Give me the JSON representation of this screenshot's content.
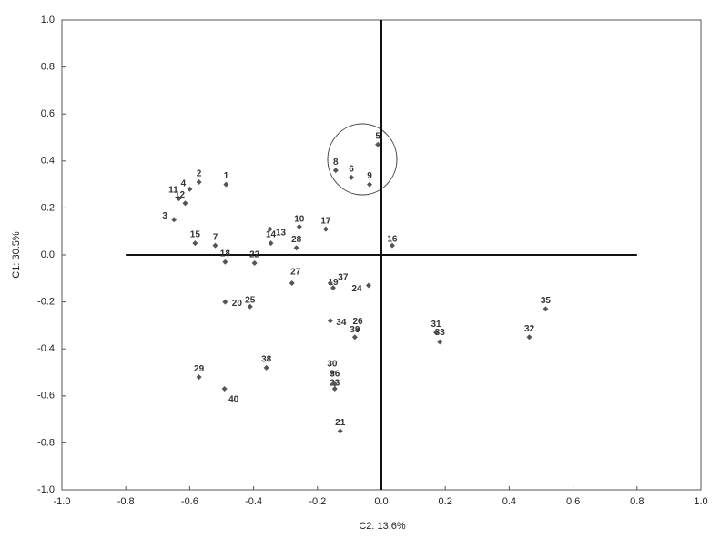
{
  "chart_data": {
    "type": "scatter",
    "xlabel": "C2: 13.6%",
    "ylabel": "C1: 30.5%",
    "labels": [
      "1",
      "2",
      "3",
      "4",
      "5",
      "6",
      "7",
      "8",
      "9",
      "10",
      "11",
      "12",
      "13",
      "14",
      "15",
      "16",
      "17",
      "18",
      "19",
      "20",
      "21",
      "22",
      "23",
      "24",
      "25",
      "26",
      "27",
      "28",
      "29",
      "30",
      "31",
      "32",
      "33",
      "34",
      "35",
      "36",
      "37",
      "38",
      "39",
      "40"
    ],
    "x": [
      -0.486,
      -0.571,
      -0.649,
      -0.6,
      -0.011,
      -0.094,
      -0.52,
      -0.143,
      -0.037,
      -0.257,
      -0.634,
      -0.614,
      -0.349,
      -0.346,
      -0.583,
      0.034,
      -0.174,
      -0.489,
      -0.151,
      -0.489,
      -0.129,
      -0.397,
      -0.146,
      -0.04,
      -0.411,
      -0.074,
      -0.28,
      -0.266,
      -0.571,
      -0.154,
      0.171,
      0.463,
      0.183,
      -0.16,
      0.514,
      -0.146,
      -0.16,
      -0.36,
      -0.083,
      -0.491
    ],
    "y": [
      0.3,
      0.31,
      0.15,
      0.28,
      0.47,
      0.33,
      0.04,
      0.36,
      0.3,
      0.12,
      0.24,
      0.22,
      0.11,
      0.05,
      0.05,
      0.04,
      0.11,
      -0.03,
      -0.14,
      -0.2,
      -0.75,
      -0.035,
      -0.57,
      -0.13,
      -0.22,
      -0.32,
      -0.12,
      0.03,
      -0.52,
      -0.5,
      -0.33,
      -0.35,
      -0.37,
      -0.28,
      -0.23,
      -0.55,
      -0.12,
      -0.48,
      -0.35,
      -0.57
    ],
    "color": "#555555",
    "xlim": [
      -1.0,
      1.0
    ],
    "ylim": [
      -1.0,
      1.0
    ],
    "xticks": [
      {
        "value": -1.0,
        "label": "-1.0"
      },
      {
        "value": -0.8,
        "label": "-0.8"
      },
      {
        "value": -0.6,
        "label": "-0.6"
      },
      {
        "value": -0.4,
        "label": "-0.4"
      },
      {
        "value": -0.2,
        "label": "-0.2"
      },
      {
        "value": 0,
        "label": "0.0"
      },
      {
        "value": 0.2,
        "label": "0.2"
      },
      {
        "value": 0.4,
        "label": "0.4"
      },
      {
        "value": 0.6,
        "label": "0.6"
      },
      {
        "value": 0.8,
        "label": "0.8"
      },
      {
        "value": 1.0,
        "label": "1.0"
      }
    ],
    "yticks": [
      {
        "value": -1.0,
        "label": "-1.0"
      },
      {
        "value": -0.8,
        "label": "-0.8"
      },
      {
        "value": -0.6,
        "label": "-0.6"
      },
      {
        "value": -0.4,
        "label": "-0.4"
      },
      {
        "value": -0.2,
        "label": "-0.2"
      },
      {
        "value": 0,
        "label": "0.0"
      },
      {
        "value": 0.2,
        "label": "0.2"
      },
      {
        "value": 0.4,
        "label": "0.4"
      },
      {
        "value": 0.6,
        "label": "0.6"
      },
      {
        "value": 0.8,
        "label": "0.8"
      },
      {
        "value": 1.0,
        "label": "1.0"
      }
    ],
    "reference_lines": [
      {
        "axis": "y",
        "value": 0,
        "from": -0.8,
        "to": 0.8
      },
      {
        "axis": "x",
        "value": 0,
        "from": -1.0,
        "to": 1.0
      }
    ],
    "grid": false
  }
}
